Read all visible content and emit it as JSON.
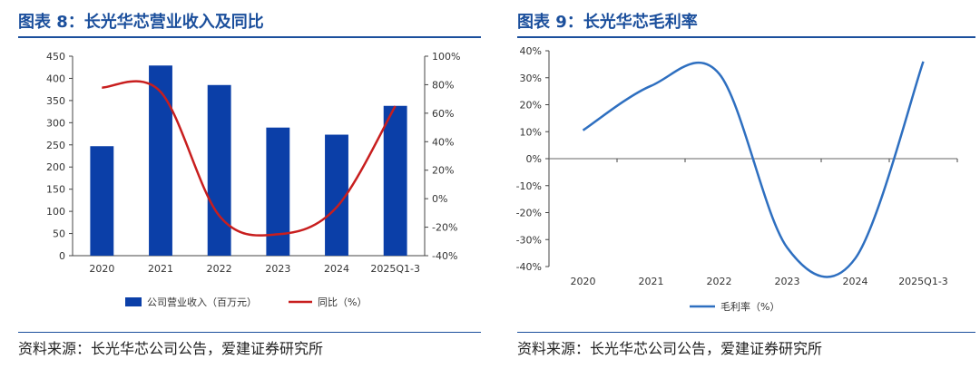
{
  "colors": {
    "title": "#1b4f9c",
    "bar": "#0b3fa8",
    "yoy_line": "#c81e1e",
    "margin_line": "#2e6fc0",
    "axis": "#444444",
    "zero_line": "#666666"
  },
  "chart_data": [
    {
      "type": "bar",
      "title": "图表 8：长光华芯营业收入及同比",
      "categories": [
        "2020",
        "2021",
        "2022",
        "2023",
        "2024",
        "2025Q1-3"
      ],
      "series": [
        {
          "name": "公司营业收入（百万元）",
          "type": "bar",
          "axis": "left",
          "values": [
            247,
            429,
            385,
            289,
            273,
            338
          ]
        },
        {
          "name": "同比（%）",
          "type": "line",
          "axis": "right",
          "smooth": true,
          "values": [
            78,
            75,
            -12,
            -25,
            -6,
            65
          ]
        }
      ],
      "ylim": [
        0,
        450
      ],
      "yticks": [
        "450",
        "400",
        "350",
        "300",
        "250",
        "200",
        "150",
        "100",
        "50",
        "0"
      ],
      "y2lim": [
        -40,
        100
      ],
      "y2ticks": [
        "100%",
        "80%",
        "60%",
        "40%",
        "20%",
        "0%",
        "-20%",
        "-40%"
      ],
      "legend": "bottom",
      "source": "资料来源：长光华芯公司公告，爱建证券研究所"
    },
    {
      "type": "line",
      "title": "图表 9：长光华芯毛利率",
      "categories": [
        "2020",
        "2021",
        "2022",
        "2023",
        "2024",
        "2025Q1-3"
      ],
      "series": [
        {
          "name": "毛利率（%）",
          "smooth": true,
          "values": [
            10.5,
            27,
            31.5,
            -33,
            -37,
            36
          ]
        }
      ],
      "ylim": [
        -40,
        40
      ],
      "yticks": [
        "40%",
        "30%",
        "20%",
        "10%",
        "0%",
        "-10%",
        "-20%",
        "-30%",
        "-40%"
      ],
      "legend": "bottom",
      "source": "资料来源：长光华芯公司公告，爱建证券研究所"
    }
  ]
}
